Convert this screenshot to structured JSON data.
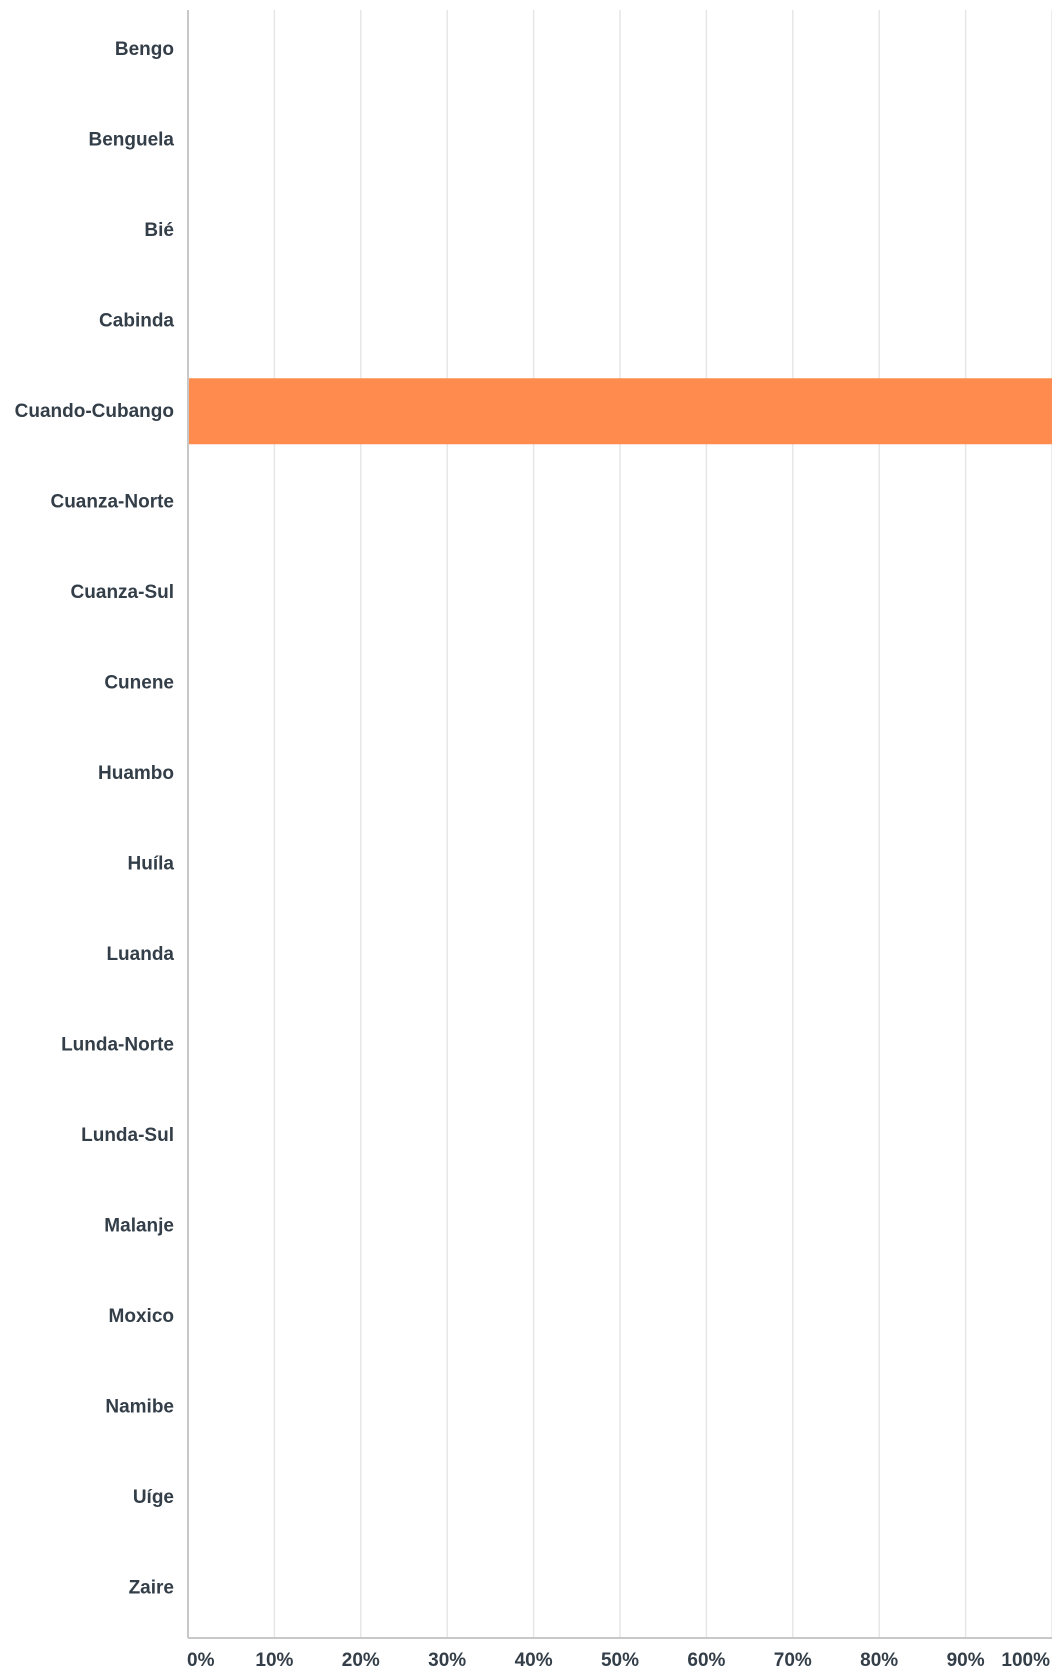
{
  "chart_data": {
    "type": "bar",
    "orientation": "horizontal",
    "categories": [
      "Bengo",
      "Benguela",
      "Bié",
      "Cabinda",
      "Cuando-Cubango",
      "Cuanza-Norte",
      "Cuanza-Sul",
      "Cunene",
      "Huambo",
      "Huíla",
      "Luanda",
      "Lunda-Norte",
      "Lunda-Sul",
      "Malanje",
      "Moxico",
      "Namibe",
      "Uíge",
      "Zaire"
    ],
    "values": [
      0,
      0,
      0,
      0,
      100,
      0,
      0,
      0,
      0,
      0,
      0,
      0,
      0,
      0,
      0,
      0,
      0,
      0
    ],
    "value_unit": "percent",
    "xlim": [
      0,
      100
    ],
    "xticks": [
      0,
      10,
      20,
      30,
      40,
      50,
      60,
      70,
      80,
      90,
      100
    ],
    "xtick_labels": [
      "0%",
      "10%",
      "20%",
      "30%",
      "40%",
      "50%",
      "60%",
      "70%",
      "80%",
      "90%",
      "100%"
    ],
    "grid": "vertical",
    "legend": "none",
    "colors": {
      "bar": "#ff8b4f",
      "grid": "#e6e6e6",
      "axis": "#c8c8c8",
      "text": "#333e48"
    }
  }
}
